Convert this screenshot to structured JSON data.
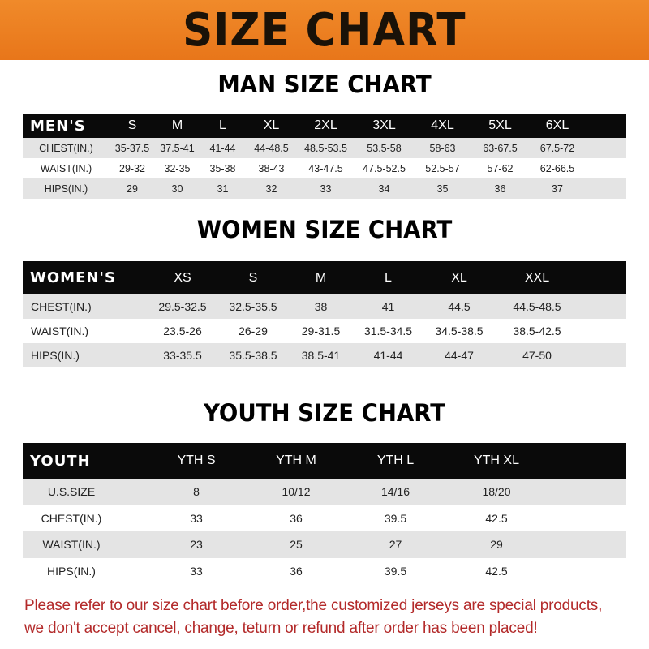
{
  "banner": {
    "title": "SIZE CHART"
  },
  "men": {
    "title": "MAN SIZE CHART",
    "header": [
      "MEN'S",
      "S",
      "M",
      "L",
      "XL",
      "2XL",
      "3XL",
      "4XL",
      "5XL",
      "6XL"
    ],
    "rows": [
      [
        "CHEST(IN.)",
        "35-37.5",
        "37.5-41",
        "41-44",
        "44-48.5",
        "48.5-53.5",
        "53.5-58",
        "58-63",
        "63-67.5",
        "67.5-72"
      ],
      [
        "WAIST(IN.)",
        "29-32",
        "32-35",
        "35-38",
        "38-43",
        "43-47.5",
        "47.5-52.5",
        "52.5-57",
        "57-62",
        "62-66.5"
      ],
      [
        "HIPS(IN.)",
        "29",
        "30",
        "31",
        "32",
        "33",
        "34",
        "35",
        "36",
        "37"
      ]
    ]
  },
  "women": {
    "title": "WOMEN SIZE CHART",
    "header": [
      "WOMEN'S",
      "XS",
      "S",
      "M",
      "L",
      "XL",
      "XXL"
    ],
    "rows": [
      [
        "CHEST(IN.)",
        "29.5-32.5",
        "32.5-35.5",
        "38",
        "41",
        "44.5",
        "44.5-48.5"
      ],
      [
        "WAIST(IN.)",
        "23.5-26",
        "26-29",
        "29-31.5",
        "31.5-34.5",
        "34.5-38.5",
        "38.5-42.5"
      ],
      [
        "HIPS(IN.)",
        "33-35.5",
        "35.5-38.5",
        "38.5-41",
        "41-44",
        "44-47",
        "47-50"
      ]
    ]
  },
  "youth": {
    "title": "YOUTH SIZE CHART",
    "header": [
      "YOUTH",
      "YTH S",
      "YTH M",
      "YTH L",
      "YTH XL"
    ],
    "rows": [
      [
        "U.S.SIZE",
        "8",
        "10/12",
        "14/16",
        "18/20"
      ],
      [
        "CHEST(IN.)",
        "33",
        "36",
        "39.5",
        "42.5"
      ],
      [
        "WAIST(IN.)",
        "23",
        "25",
        "27",
        "29"
      ],
      [
        "HIPS(IN.)",
        "33",
        "36",
        "39.5",
        "42.5"
      ]
    ]
  },
  "notice": {
    "line1": "Please refer to our size chart before order,the customized jerseys are special products,",
    "line2": "we don't accept cancel, change, teturn or refund after order has been placed!"
  },
  "colors": {
    "banner": "#ec7f22",
    "header_row": "#0a0a0a",
    "stripe": "#e4e4e4",
    "notice": "#b32a2a"
  }
}
